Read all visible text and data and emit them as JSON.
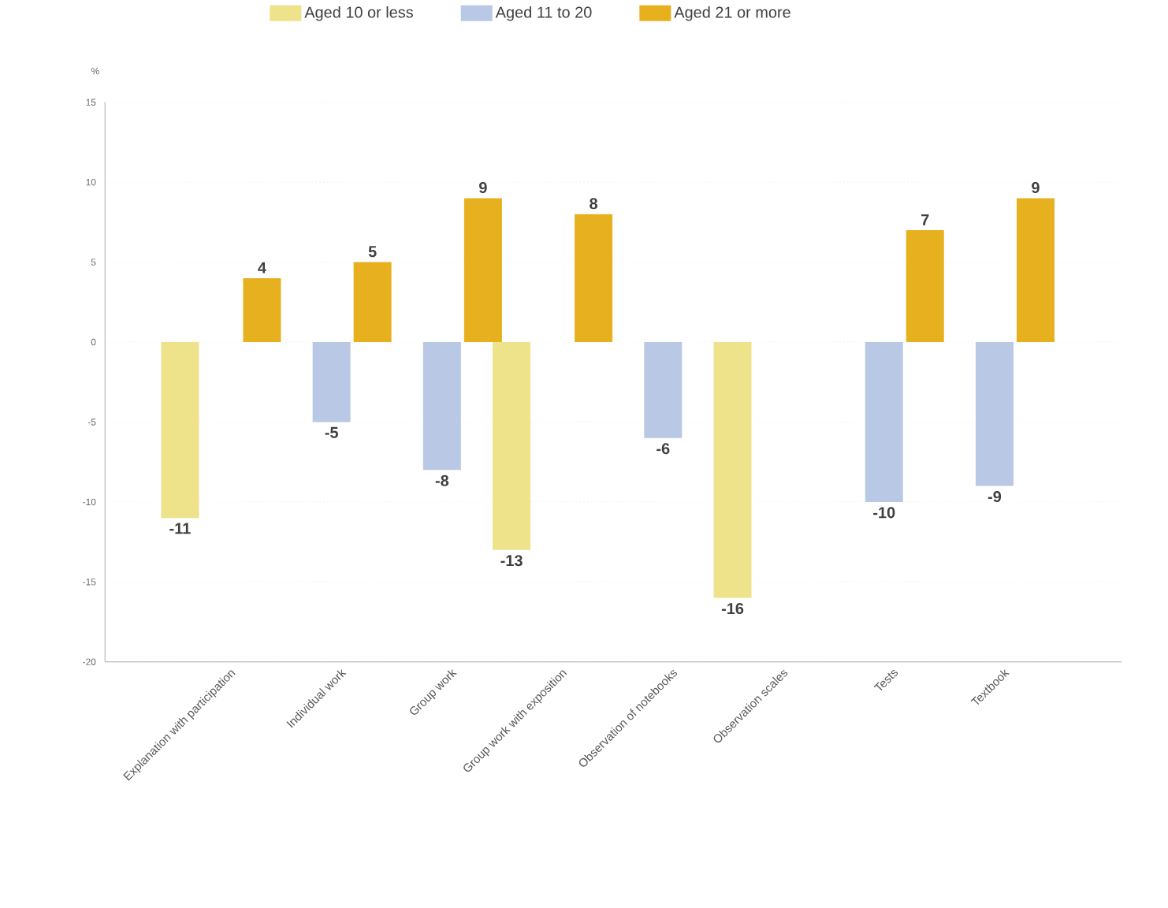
{
  "chart_data": {
    "type": "bar",
    "ylabel": "%",
    "categories": [
      "Explanation with participation",
      "Individual work",
      "Group work",
      "Group work with exposition",
      "Observation of notebooks",
      "Observation scales",
      "Tests",
      "Textbook"
    ],
    "series": [
      {
        "name": "Aged 10 or less",
        "color": "#eee28a",
        "values": [
          -11,
          null,
          null,
          -13,
          null,
          -16,
          null,
          null
        ]
      },
      {
        "name": "Aged 11 to 20",
        "color": "#b9c8e4",
        "values": [
          null,
          -5,
          -8,
          null,
          -6,
          null,
          -10,
          -9
        ]
      },
      {
        "name": "Aged 21 or more",
        "color": "#e6b01e",
        "values": [
          4,
          5,
          9,
          8,
          null,
          null,
          7,
          9
        ]
      }
    ],
    "ylim": [
      -20,
      15
    ],
    "yticks": [
      -20,
      -15,
      -10,
      -5,
      0,
      5,
      10,
      15
    ],
    "grid": "y",
    "legend": "top",
    "data_labels": true
  }
}
